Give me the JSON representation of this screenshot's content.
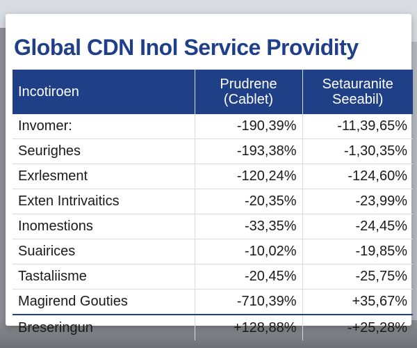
{
  "title": "Global CDN Inol Service Providity",
  "headers": {
    "col1": "Incotiroen",
    "col2_line1": "Prudrene",
    "col2_line2": "(Cablet)",
    "col3_line1": "Setauranite",
    "col3_line2": "Seeabil)"
  },
  "rows": [
    {
      "label": "Invomer:",
      "v1": "-190,39%",
      "v2": "-11,39,65%"
    },
    {
      "label": "Seurighes",
      "v1": "-193,38%",
      "v2": "-1,30,35%"
    },
    {
      "label": "Exrlesment",
      "v1": "-120,24%",
      "v2": "-124,60%"
    },
    {
      "label": "Exten Intrivaitics",
      "v1": "-20,35%",
      "v2": "-23,99%"
    },
    {
      "label": "Inomestions",
      "v1": "-33,35%",
      "v2": "-24,45%"
    },
    {
      "label": "Suairices",
      "v1": "-10,02%",
      "v2": "-19,85%"
    },
    {
      "label": "Tastaliisme",
      "v1": "-20,45%",
      "v2": "-25,75%"
    },
    {
      "label": "Magirend Gouties",
      "v1": "-710,39%",
      "v2": "+35,67%"
    }
  ],
  "total": {
    "label": "Breseringun",
    "v1": "+128,88%",
    "v2": "-+25,28%"
  },
  "colors": {
    "title": "#1f3f8a",
    "header_bg": "#1f3f86",
    "header_text": "#ffffff"
  }
}
